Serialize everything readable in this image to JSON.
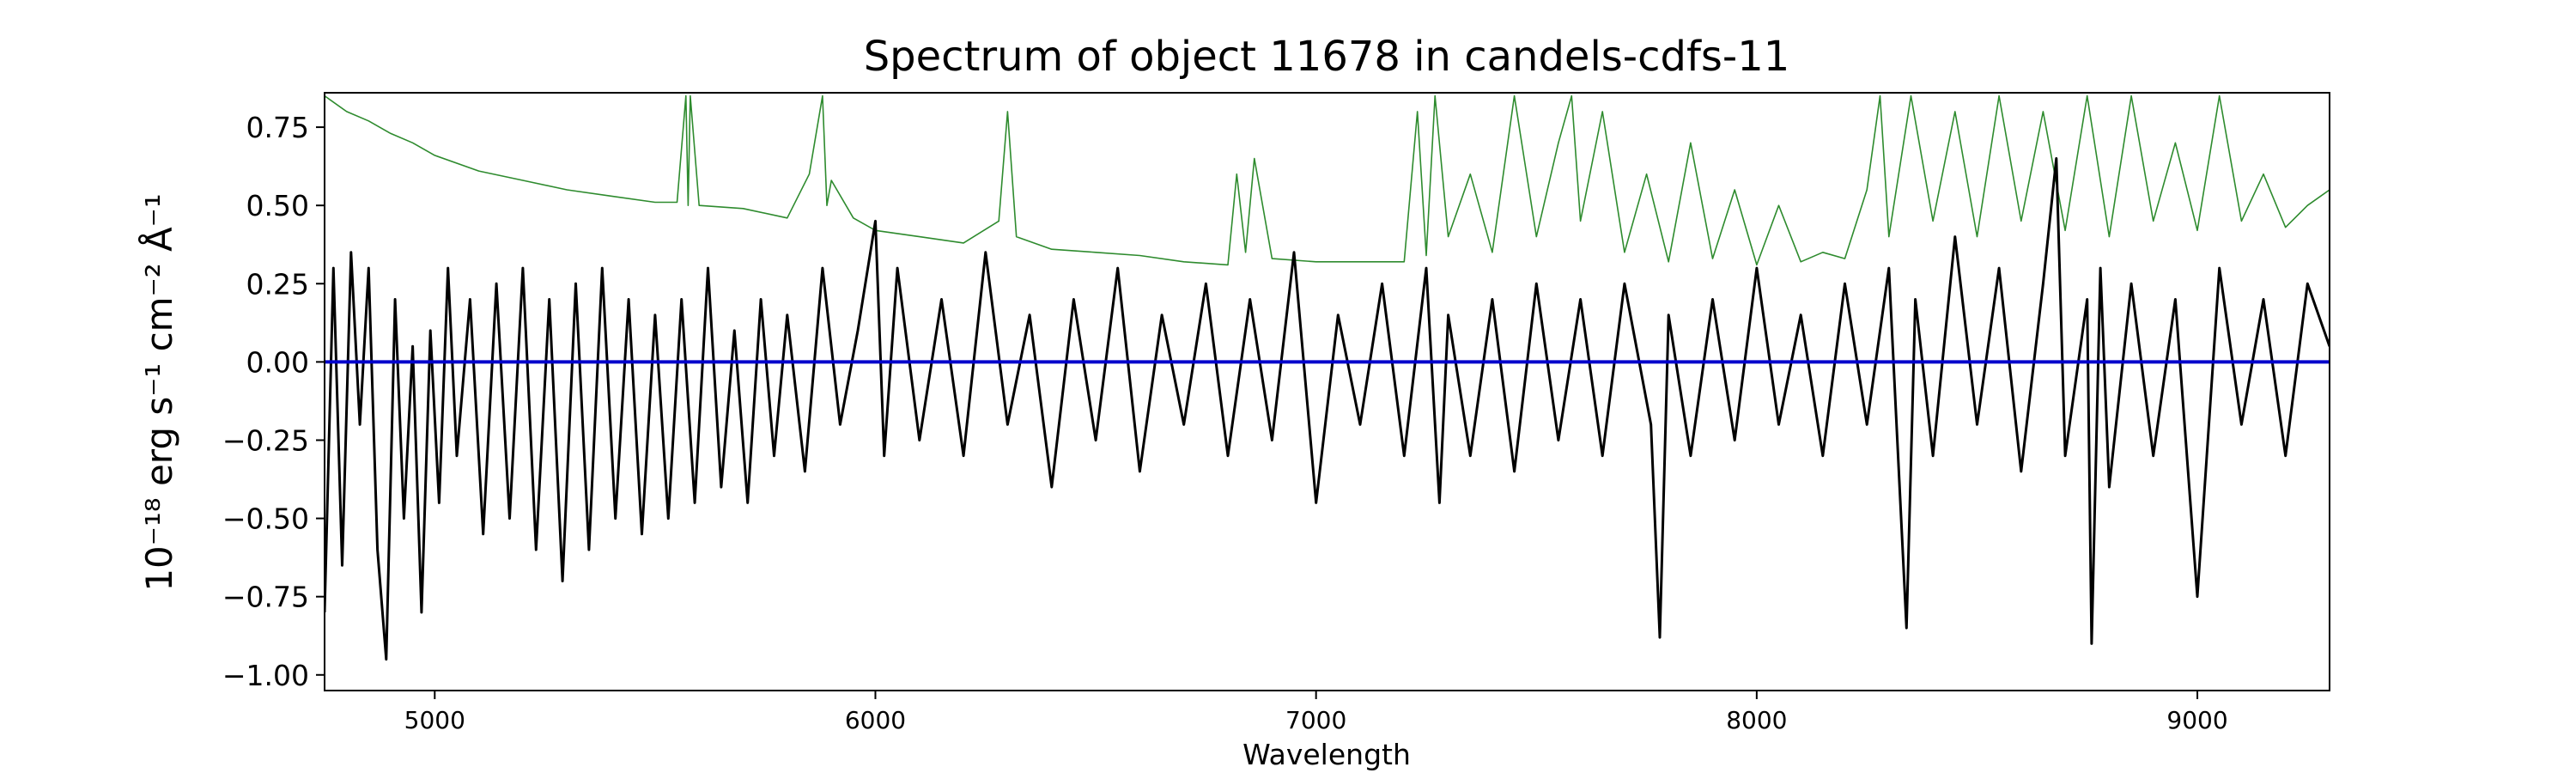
{
  "chart_data": {
    "type": "line",
    "title": "Spectrum of object 11678 in candels-cdfs-11",
    "xlabel": "Wavelength",
    "ylabel": "10⁻¹⁸ erg s⁻¹ cm⁻² Å⁻¹",
    "xlim": [
      4750,
      9300
    ],
    "ylim": [
      -1.05,
      0.86
    ],
    "x_ticks": [
      5000,
      6000,
      7000,
      8000,
      9000
    ],
    "x_tick_labels": [
      "5000",
      "6000",
      "7000",
      "8000",
      "9000"
    ],
    "y_ticks": [
      -1.0,
      -0.75,
      -0.5,
      -0.25,
      0.0,
      0.25,
      0.5,
      0.75
    ],
    "y_tick_labels": [
      "−1.00",
      "−0.75",
      "−0.50",
      "−0.25",
      "0.00",
      "0.25",
      "0.50",
      "0.75"
    ],
    "grid": false,
    "series": [
      {
        "role": "flux",
        "color": "#000000",
        "x": [
          4750,
          4770,
          4790,
          4810,
          4830,
          4850,
          4870,
          4890,
          4910,
          4930,
          4950,
          4970,
          4990,
          5010,
          5030,
          5050,
          5080,
          5110,
          5140,
          5170,
          5200,
          5230,
          5260,
          5290,
          5320,
          5350,
          5380,
          5410,
          5440,
          5470,
          5500,
          5530,
          5560,
          5590,
          5620,
          5650,
          5680,
          5710,
          5740,
          5770,
          5800,
          5840,
          5880,
          5920,
          5960,
          6000,
          6020,
          6050,
          6100,
          6150,
          6200,
          6250,
          6300,
          6350,
          6400,
          6450,
          6500,
          6550,
          6600,
          6650,
          6700,
          6750,
          6800,
          6850,
          6900,
          6950,
          7000,
          7050,
          7100,
          7150,
          7200,
          7250,
          7280,
          7300,
          7350,
          7400,
          7450,
          7500,
          7550,
          7600,
          7650,
          7700,
          7760,
          7780,
          7800,
          7850,
          7900,
          7950,
          8000,
          8050,
          8100,
          8150,
          8200,
          8250,
          8300,
          8340,
          8360,
          8400,
          8450,
          8500,
          8550,
          8600,
          8650,
          8680,
          8700,
          8750,
          8760,
          8780,
          8800,
          8850,
          8900,
          8950,
          9000,
          9050,
          9100,
          9150,
          9200,
          9250,
          9300
        ],
        "y": [
          -0.8,
          0.3,
          -0.65,
          0.35,
          -0.2,
          0.3,
          -0.6,
          -0.95,
          0.2,
          -0.5,
          0.05,
          -0.8,
          0.1,
          -0.45,
          0.3,
          -0.3,
          0.2,
          -0.55,
          0.25,
          -0.5,
          0.3,
          -0.6,
          0.2,
          -0.7,
          0.25,
          -0.6,
          0.3,
          -0.5,
          0.2,
          -0.55,
          0.15,
          -0.5,
          0.2,
          -0.45,
          0.3,
          -0.4,
          0.1,
          -0.45,
          0.2,
          -0.3,
          0.15,
          -0.35,
          0.3,
          -0.2,
          0.1,
          0.45,
          -0.3,
          0.3,
          -0.25,
          0.2,
          -0.3,
          0.35,
          -0.2,
          0.15,
          -0.4,
          0.2,
          -0.25,
          0.3,
          -0.35,
          0.15,
          -0.2,
          0.25,
          -0.3,
          0.2,
          -0.25,
          0.35,
          -0.45,
          0.15,
          -0.2,
          0.25,
          -0.3,
          0.3,
          -0.45,
          0.15,
          -0.3,
          0.2,
          -0.35,
          0.25,
          -0.25,
          0.2,
          -0.3,
          0.25,
          -0.2,
          -0.88,
          0.15,
          -0.3,
          0.2,
          -0.25,
          0.3,
          -0.2,
          0.15,
          -0.3,
          0.25,
          -0.2,
          0.3,
          -0.85,
          0.2,
          -0.3,
          0.4,
          -0.2,
          0.3,
          -0.35,
          0.25,
          0.65,
          -0.3,
          0.2,
          -0.9,
          0.3,
          -0.4,
          0.25,
          -0.3,
          0.2,
          -0.75,
          0.3,
          -0.2,
          0.2,
          -0.3,
          0.25,
          0.05
        ]
      },
      {
        "role": "error",
        "color": "#2e8b2e",
        "x": [
          4750,
          4800,
          4850,
          4900,
          4950,
          5000,
          5100,
          5200,
          5300,
          5400,
          5500,
          5550,
          5570,
          5575,
          5580,
          5600,
          5700,
          5800,
          5850,
          5880,
          5890,
          5900,
          5950,
          6000,
          6100,
          6200,
          6280,
          6300,
          6320,
          6400,
          6500,
          6600,
          6700,
          6800,
          6820,
          6840,
          6860,
          6900,
          7000,
          7100,
          7200,
          7230,
          7250,
          7270,
          7300,
          7350,
          7400,
          7450,
          7500,
          7550,
          7580,
          7600,
          7650,
          7700,
          7750,
          7800,
          7850,
          7900,
          7950,
          8000,
          8050,
          8100,
          8150,
          8200,
          8250,
          8280,
          8300,
          8350,
          8400,
          8450,
          8500,
          8550,
          8600,
          8650,
          8700,
          8750,
          8800,
          8850,
          8900,
          8950,
          9000,
          9050,
          9100,
          9150,
          9200,
          9250,
          9300
        ],
        "y": [
          0.85,
          0.8,
          0.77,
          0.73,
          0.7,
          0.66,
          0.61,
          0.58,
          0.55,
          0.53,
          0.51,
          0.51,
          0.85,
          0.5,
          0.85,
          0.5,
          0.49,
          0.46,
          0.6,
          0.85,
          0.5,
          0.58,
          0.46,
          0.42,
          0.4,
          0.38,
          0.45,
          0.8,
          0.4,
          0.36,
          0.35,
          0.34,
          0.32,
          0.31,
          0.6,
          0.35,
          0.65,
          0.33,
          0.32,
          0.32,
          0.32,
          0.8,
          0.34,
          0.85,
          0.4,
          0.6,
          0.35,
          0.85,
          0.4,
          0.7,
          0.85,
          0.45,
          0.8,
          0.35,
          0.6,
          0.32,
          0.7,
          0.33,
          0.55,
          0.31,
          0.5,
          0.32,
          0.35,
          0.33,
          0.55,
          0.85,
          0.4,
          0.85,
          0.45,
          0.8,
          0.4,
          0.85,
          0.45,
          0.8,
          0.42,
          0.85,
          0.4,
          0.85,
          0.45,
          0.7,
          0.42,
          0.85,
          0.45,
          0.6,
          0.43,
          0.5,
          0.55
        ]
      },
      {
        "role": "continuum",
        "color": "#0000cc",
        "x": [
          4750,
          9300
        ],
        "y": [
          0.0,
          0.0
        ]
      }
    ]
  }
}
